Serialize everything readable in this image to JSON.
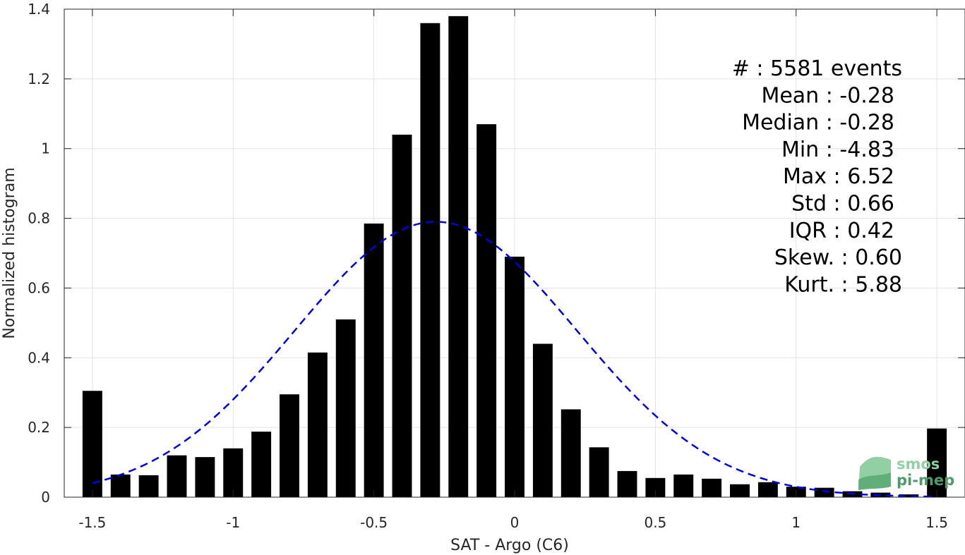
{
  "chart_data": {
    "type": "bar",
    "xlabel": "SAT - Argo (C6)",
    "ylabel": "Normalized histogram",
    "xlim": [
      -1.6,
      1.6
    ],
    "ylim": [
      0,
      1.4
    ],
    "x_ticks": [
      -1.5,
      -1,
      -0.5,
      0,
      0.5,
      1,
      1.5
    ],
    "x_tick_labels": [
      "-1.5",
      "-1",
      "-0.5",
      "0",
      "0.5",
      "1",
      "1.5"
    ],
    "y_ticks": [
      0,
      0.2,
      0.4,
      0.6,
      0.8,
      1,
      1.2,
      1.4
    ],
    "y_tick_labels": [
      "0",
      "0.2",
      "0.4",
      "0.6",
      "0.8",
      "1",
      "1.2",
      "1.4"
    ],
    "grid": true,
    "bar_width": 0.07,
    "bar_color": "#000000",
    "x": [
      -1.5,
      -1.4,
      -1.3,
      -1.2,
      -1.1,
      -1.0,
      -0.9,
      -0.8,
      -0.7,
      -0.6,
      -0.5,
      -0.4,
      -0.3,
      -0.2,
      -0.1,
      0.0,
      0.1,
      0.2,
      0.3,
      0.4,
      0.5,
      0.6,
      0.7,
      0.8,
      0.9,
      1.0,
      1.1,
      1.2,
      1.3,
      1.4,
      1.5
    ],
    "values": [
      0.305,
      0.065,
      0.063,
      0.12,
      0.115,
      0.14,
      0.188,
      0.295,
      0.415,
      0.51,
      0.785,
      1.04,
      1.36,
      1.38,
      1.07,
      0.69,
      0.44,
      0.252,
      0.143,
      0.075,
      0.055,
      0.065,
      0.053,
      0.037,
      0.043,
      0.03,
      0.027,
      0.017,
      0.013,
      0.008,
      0.197
    ],
    "fit": {
      "type": "normal",
      "mean": -0.28,
      "std": 0.5,
      "peak": 0.79,
      "x_range": [
        -1.5,
        1.5
      ],
      "color": "#0000e6",
      "style": "dashed"
    },
    "annotations": [
      {
        "label": "#  : 5581 events"
      },
      {
        "label": "Mean : -0.28"
      },
      {
        "label": "Median : -0.28"
      },
      {
        "label": "Min : -4.83"
      },
      {
        "label": "Max : 6.52"
      },
      {
        "label": "Std : 0.66"
      },
      {
        "label": "IQR : 0.42"
      },
      {
        "label": "Skew. : 0.60"
      },
      {
        "label": "Kurt. : 5.88"
      }
    ]
  },
  "watermark": {
    "line1": "smos",
    "line2": "pi-mep"
  }
}
